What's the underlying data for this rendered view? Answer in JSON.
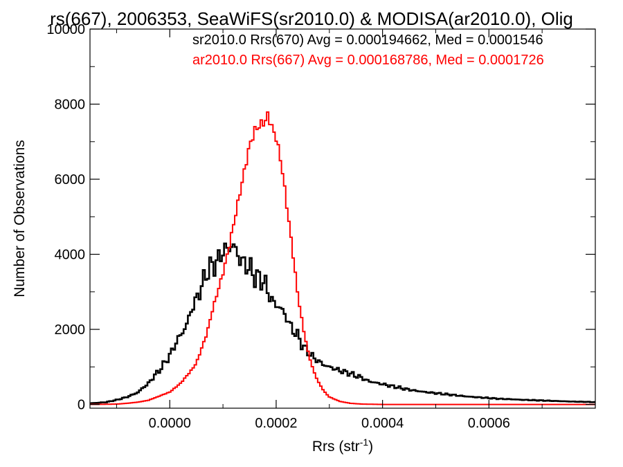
{
  "chart_data": {
    "type": "histogram",
    "title": "rs(667), 2006353, SeaWiFS(sr2010.0) & MODISA(ar2010.0), Olig",
    "xlabel": "Rrs (str",
    "xlabel_sup": "-1",
    "xlabel_close": ")",
    "ylabel": "Number of Observations",
    "xlim": [
      -0.00015,
      0.0008
    ],
    "ylim": [
      -100,
      10000
    ],
    "x_ticks": [
      {
        "value": 0.0,
        "label": "0.0000"
      },
      {
        "value": 0.0002,
        "label": "0.0002"
      },
      {
        "value": 0.0004,
        "label": "0.0004"
      },
      {
        "value": 0.0006,
        "label": "0.0006"
      }
    ],
    "y_ticks": [
      {
        "value": 0,
        "label": "0"
      },
      {
        "value": 2000,
        "label": "2000"
      },
      {
        "value": 4000,
        "label": "4000"
      },
      {
        "value": 6000,
        "label": "6000"
      },
      {
        "value": 8000,
        "label": "8000"
      },
      {
        "value": 10000,
        "label": "10000"
      }
    ],
    "legend": {
      "placement": "top-right",
      "entries": [
        {
          "text": "sr2010.0 Rrs(670) Avg = 0.000194662, Med = 0.0001546",
          "color": "#000000"
        },
        {
          "text": "ar2010.0 Rrs(667) Avg = 0.000168786, Med = 0.0001726",
          "color": "#ff0000"
        }
      ]
    },
    "series": [
      {
        "name": "sr2010.0 Rrs(670)",
        "color": "#000000",
        "line_width": 2.6,
        "points": [
          [
            -0.00015,
            30
          ],
          [
            -0.00012,
            60
          ],
          [
            -0.0001,
            120
          ],
          [
            -8e-05,
            200
          ],
          [
            -6e-05,
            320
          ],
          [
            -5e-05,
            450
          ],
          [
            -4e-05,
            560
          ],
          [
            -3e-05,
            750
          ],
          [
            -2e-05,
            900
          ],
          [
            -1e-05,
            1100
          ],
          [
            0.0,
            1300
          ],
          [
            1e-05,
            1600
          ],
          [
            2e-05,
            1850
          ],
          [
            3e-05,
            2050
          ],
          [
            4e-05,
            2500
          ],
          [
            5e-05,
            2800
          ],
          [
            6e-05,
            3150
          ],
          [
            7e-05,
            3550
          ],
          [
            8e-05,
            3700
          ],
          [
            9e-05,
            3800
          ],
          [
            0.0001,
            4100
          ],
          [
            0.00011,
            4150
          ],
          [
            0.00012,
            4250
          ],
          [
            0.00013,
            3900
          ],
          [
            0.00014,
            3750
          ],
          [
            0.00015,
            3650
          ],
          [
            0.00016,
            3400
          ],
          [
            0.00017,
            3350
          ],
          [
            0.00018,
            3200
          ],
          [
            0.00019,
            2800
          ],
          [
            0.0002,
            2650
          ],
          [
            0.00021,
            2550
          ],
          [
            0.00022,
            2300
          ],
          [
            0.00023,
            2000
          ],
          [
            0.00024,
            1850
          ],
          [
            0.00025,
            1550
          ],
          [
            0.00026,
            1400
          ],
          [
            0.00027,
            1250
          ],
          [
            0.00028,
            1150
          ],
          [
            0.00029,
            1050
          ],
          [
            0.0003,
            1000
          ],
          [
            0.00031,
            950
          ],
          [
            0.00032,
            900
          ],
          [
            0.00033,
            860
          ],
          [
            0.00034,
            820
          ],
          [
            0.00035,
            760
          ],
          [
            0.00036,
            720
          ],
          [
            0.00037,
            640
          ],
          [
            0.00038,
            600
          ],
          [
            0.00039,
            570
          ],
          [
            0.0004,
            540
          ],
          [
            0.00042,
            480
          ],
          [
            0.00044,
            420
          ],
          [
            0.00046,
            370
          ],
          [
            0.00048,
            330
          ],
          [
            0.0005,
            300
          ],
          [
            0.00052,
            270
          ],
          [
            0.00054,
            240
          ],
          [
            0.00056,
            210
          ],
          [
            0.00058,
            190
          ],
          [
            0.0006,
            170
          ],
          [
            0.00062,
            150
          ],
          [
            0.00064,
            140
          ],
          [
            0.00066,
            125
          ],
          [
            0.00068,
            115
          ],
          [
            0.0007,
            105
          ],
          [
            0.00072,
            95
          ],
          [
            0.00074,
            85
          ],
          [
            0.00076,
            75
          ],
          [
            0.00078,
            70
          ],
          [
            0.0008,
            60
          ]
        ]
      },
      {
        "name": "ar2010.0 Rrs(667)",
        "color": "#ff0000",
        "line_width": 2,
        "points": [
          [
            -0.00015,
            0
          ],
          [
            -0.00012,
            5
          ],
          [
            -0.0001,
            10
          ],
          [
            -8e-05,
            30
          ],
          [
            -6e-05,
            60
          ],
          [
            -4e-05,
            110
          ],
          [
            -2e-05,
            220
          ],
          [
            0.0,
            330
          ],
          [
            2e-05,
            560
          ],
          [
            4e-05,
            900
          ],
          [
            5e-05,
            1100
          ],
          [
            6e-05,
            1500
          ],
          [
            7e-05,
            1900
          ],
          [
            8e-05,
            2500
          ],
          [
            9e-05,
            3000
          ],
          [
            0.0001,
            3500
          ],
          [
            0.00011,
            4100
          ],
          [
            0.00012,
            4800
          ],
          [
            0.00013,
            5500
          ],
          [
            0.00014,
            6200
          ],
          [
            0.00015,
            6900
          ],
          [
            0.00016,
            7300
          ],
          [
            0.00017,
            7450
          ],
          [
            0.00018,
            7550
          ],
          [
            0.000185,
            7750
          ],
          [
            0.00019,
            7450
          ],
          [
            0.0002,
            7100
          ],
          [
            0.00021,
            6400
          ],
          [
            0.00022,
            5300
          ],
          [
            0.00023,
            4200
          ],
          [
            0.00024,
            3000
          ],
          [
            0.00025,
            2100
          ],
          [
            0.00026,
            1400
          ],
          [
            0.00027,
            900
          ],
          [
            0.00028,
            580
          ],
          [
            0.00029,
            350
          ],
          [
            0.0003,
            200
          ],
          [
            0.00032,
            80
          ],
          [
            0.00034,
            30
          ],
          [
            0.00036,
            10
          ],
          [
            0.00038,
            5
          ],
          [
            0.0004,
            0
          ],
          [
            0.0008,
            0
          ]
        ]
      }
    ]
  }
}
